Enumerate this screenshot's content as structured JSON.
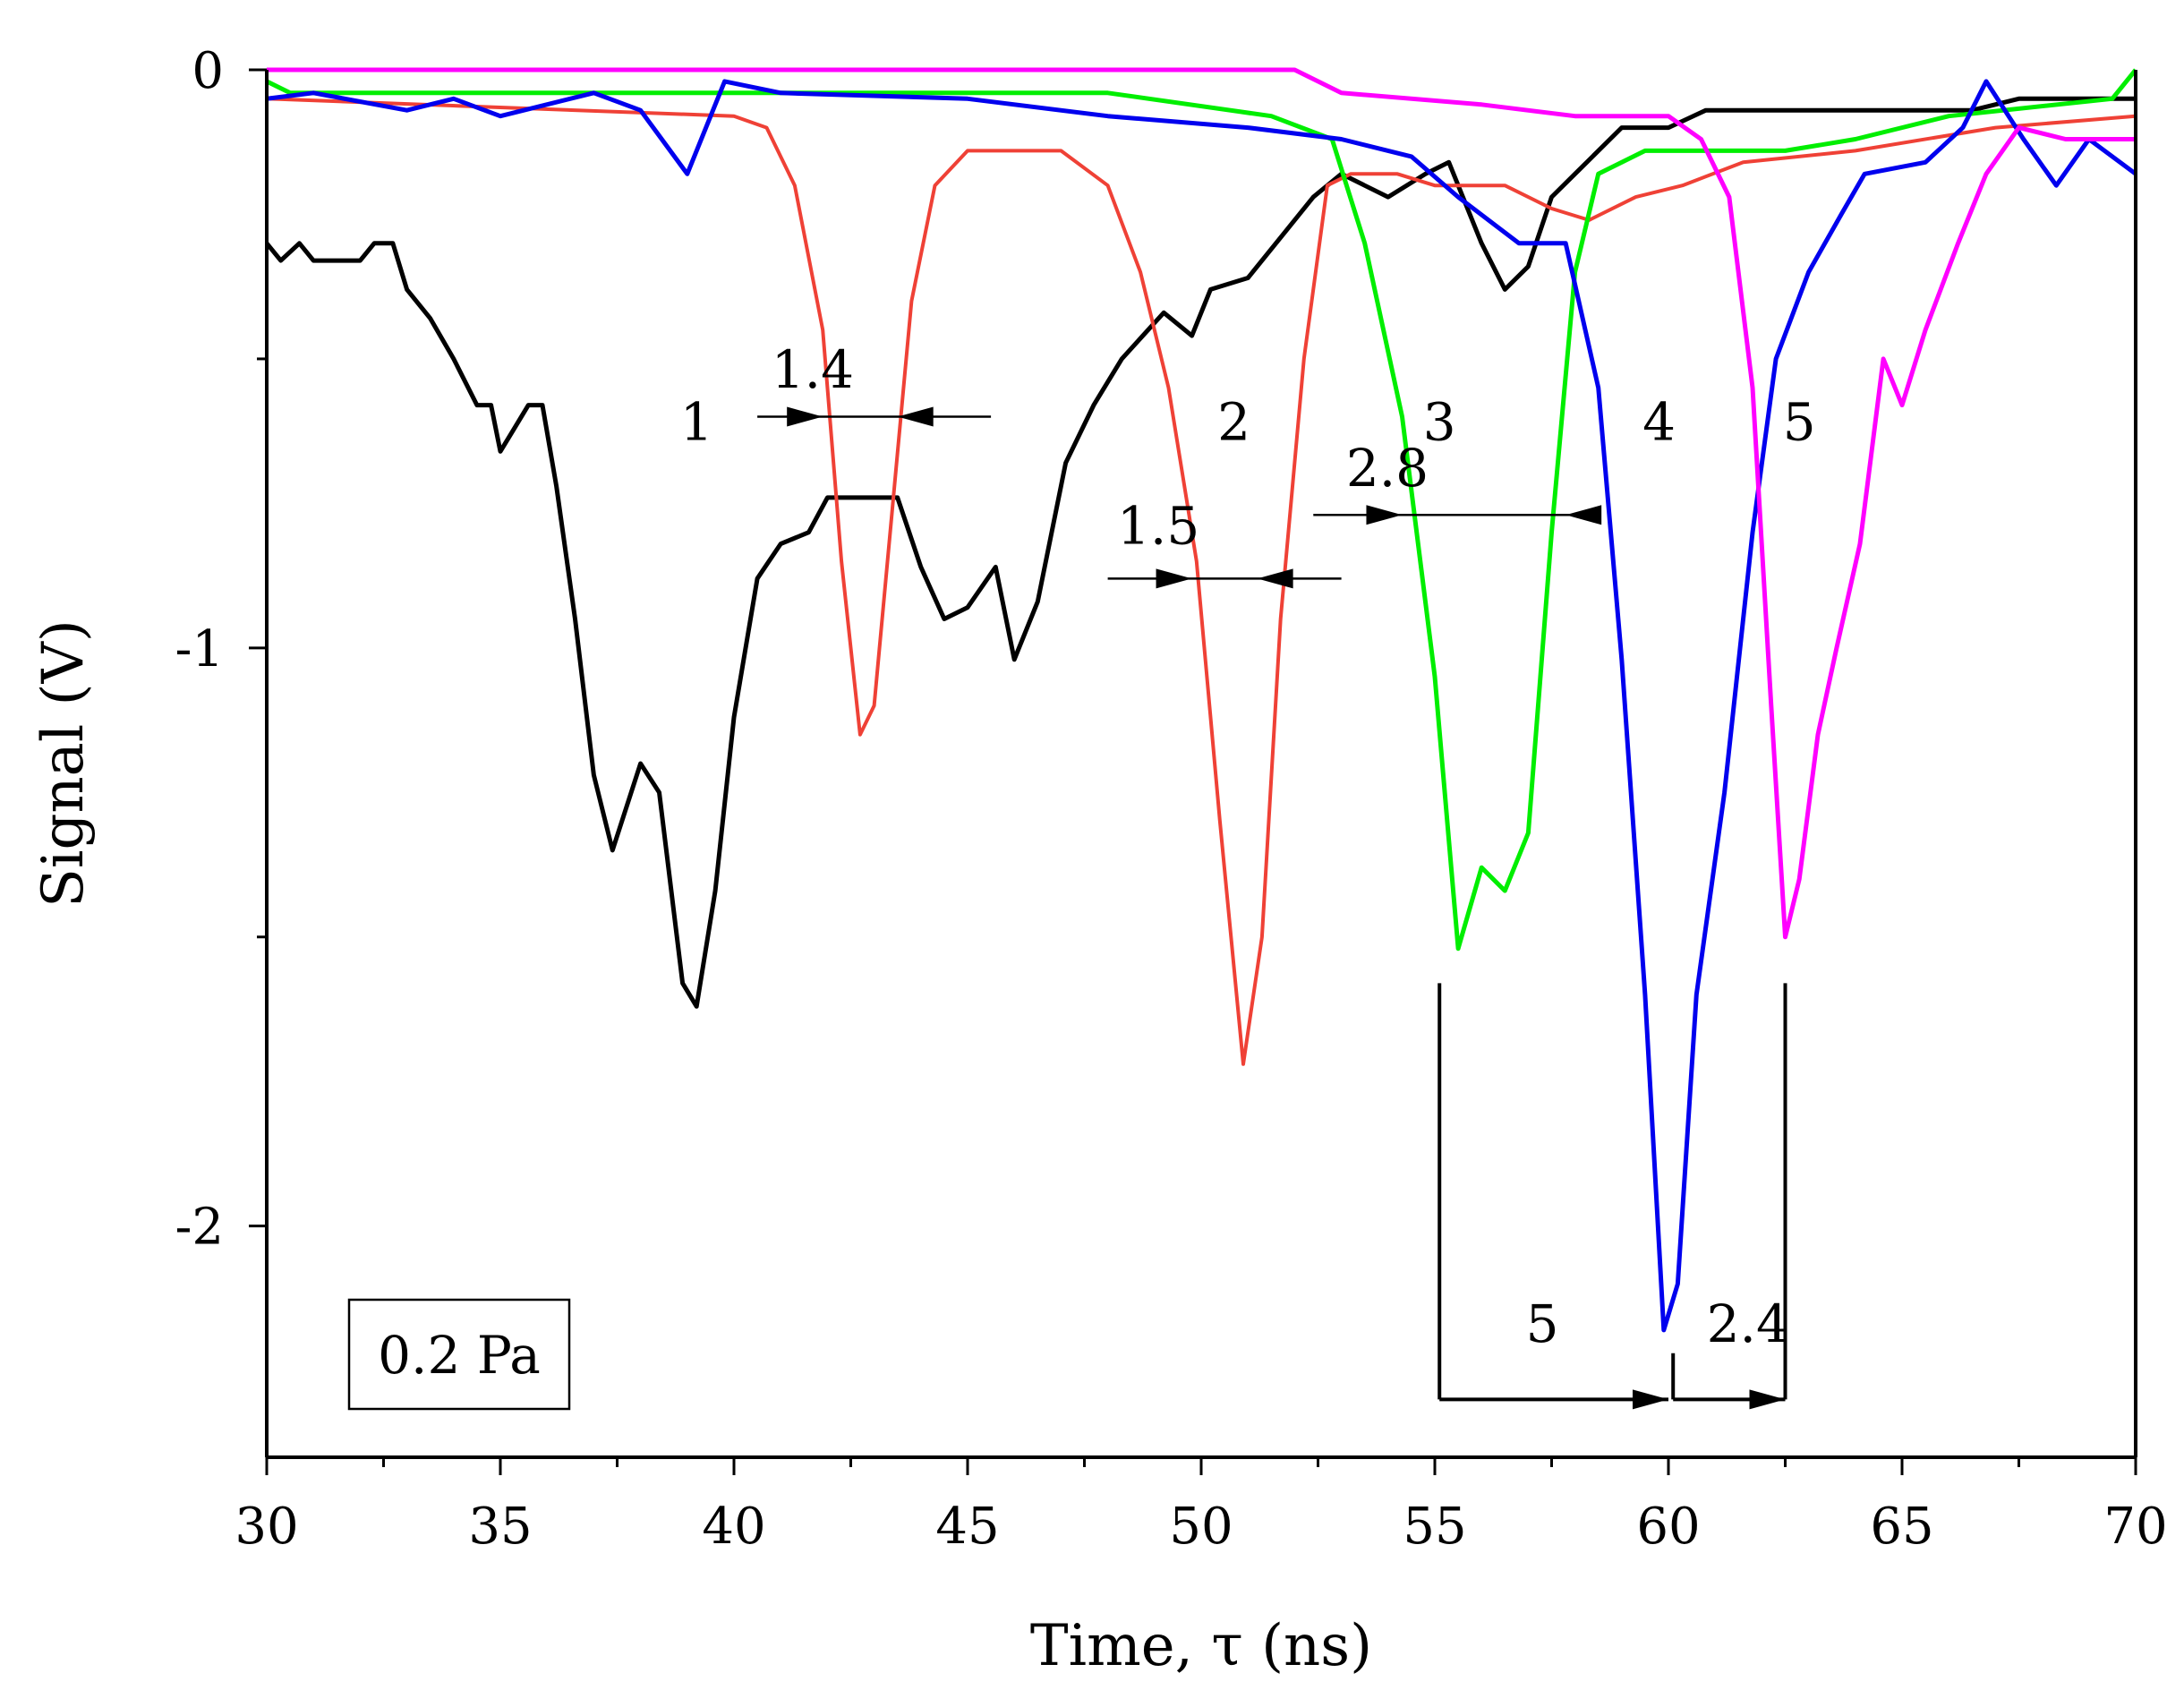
{
  "chart_data": {
    "type": "line",
    "xlabel": "Time, τ (ns)",
    "ylabel": "Signal (V)",
    "xlim": [
      30,
      70
    ],
    "ylim": [
      -2.4,
      0
    ],
    "xticks": [
      30,
      35,
      40,
      45,
      50,
      55,
      60,
      65,
      70
    ],
    "xtick_labels": [
      "30",
      "35",
      "40",
      "45",
      "50",
      "55",
      "60",
      "65",
      "70"
    ],
    "yticks": [
      0,
      -1,
      -2
    ],
    "ytick_labels": [
      "0",
      "-1",
      "-2"
    ],
    "grid": false,
    "legend_box": "0.2 Pa",
    "series": [
      {
        "name": "1",
        "color": "#000000",
        "points": [
          [
            30,
            -0.3
          ],
          [
            30.3,
            -0.33
          ],
          [
            30.7,
            -0.3
          ],
          [
            31,
            -0.33
          ],
          [
            32,
            -0.33
          ],
          [
            32.3,
            -0.3
          ],
          [
            32.7,
            -0.3
          ],
          [
            33,
            -0.38
          ],
          [
            33.5,
            -0.43
          ],
          [
            34,
            -0.5
          ],
          [
            34.5,
            -0.58
          ],
          [
            34.8,
            -0.58
          ],
          [
            35,
            -0.66
          ],
          [
            35.3,
            -0.62
          ],
          [
            35.6,
            -0.58
          ],
          [
            35.9,
            -0.58
          ],
          [
            36.2,
            -0.72
          ],
          [
            36.6,
            -0.95
          ],
          [
            37,
            -1.22
          ],
          [
            37.4,
            -1.35
          ],
          [
            38,
            -1.2
          ],
          [
            38.4,
            -1.25
          ],
          [
            38.9,
            -1.58
          ],
          [
            39.2,
            -1.62
          ],
          [
            39.6,
            -1.42
          ],
          [
            40,
            -1.12
          ],
          [
            40.5,
            -0.88
          ],
          [
            41,
            -0.82
          ],
          [
            41.6,
            -0.8
          ],
          [
            42,
            -0.74
          ],
          [
            43.5,
            -0.74
          ],
          [
            44,
            -0.86
          ],
          [
            44.5,
            -0.95
          ],
          [
            45,
            -0.93
          ],
          [
            45.6,
            -0.86
          ],
          [
            46,
            -1.02
          ],
          [
            46.5,
            -0.92
          ],
          [
            47.1,
            -0.68
          ],
          [
            47.7,
            -0.58
          ],
          [
            48.3,
            -0.5
          ],
          [
            49.2,
            -0.42
          ],
          [
            49.8,
            -0.46
          ],
          [
            50.2,
            -0.38
          ],
          [
            51,
            -0.36
          ],
          [
            51.8,
            -0.28
          ],
          [
            52.4,
            -0.22
          ],
          [
            53,
            -0.18
          ],
          [
            54,
            -0.22
          ],
          [
            54.8,
            -0.18
          ],
          [
            55.3,
            -0.16
          ],
          [
            56,
            -0.3
          ],
          [
            56.5,
            -0.38
          ],
          [
            57,
            -0.34
          ],
          [
            57.5,
            -0.22
          ],
          [
            58,
            -0.18
          ],
          [
            59,
            -0.1
          ],
          [
            60,
            -0.1
          ],
          [
            60.8,
            -0.07
          ],
          [
            66.5,
            -0.07
          ],
          [
            67.5,
            -0.05
          ],
          [
            70,
            -0.05
          ]
        ]
      },
      {
        "name": "2",
        "color": "#ef4136",
        "points": [
          [
            30,
            -0.05
          ],
          [
            40,
            -0.08
          ],
          [
            40.7,
            -0.1
          ],
          [
            41.3,
            -0.2
          ],
          [
            41.9,
            -0.45
          ],
          [
            42.3,
            -0.85
          ],
          [
            42.7,
            -1.15
          ],
          [
            43,
            -1.1
          ],
          [
            43.4,
            -0.75
          ],
          [
            43.8,
            -0.4
          ],
          [
            44.3,
            -0.2
          ],
          [
            45,
            -0.14
          ],
          [
            47,
            -0.14
          ],
          [
            48,
            -0.2
          ],
          [
            48.7,
            -0.35
          ],
          [
            49.3,
            -0.55
          ],
          [
            49.9,
            -0.85
          ],
          [
            50.4,
            -1.3
          ],
          [
            50.9,
            -1.72
          ],
          [
            51.3,
            -1.5
          ],
          [
            51.7,
            -0.95
          ],
          [
            52.2,
            -0.5
          ],
          [
            52.7,
            -0.2
          ],
          [
            53.2,
            -0.18
          ],
          [
            54.2,
            -0.18
          ],
          [
            55,
            -0.2
          ],
          [
            56.5,
            -0.2
          ],
          [
            57.5,
            -0.24
          ],
          [
            58.3,
            -0.26
          ],
          [
            59.3,
            -0.22
          ],
          [
            60.3,
            -0.2
          ],
          [
            61.6,
            -0.16
          ],
          [
            64,
            -0.14
          ],
          [
            67,
            -0.1
          ],
          [
            70,
            -0.08
          ]
        ]
      },
      {
        "name": "3",
        "color": "#00ee00",
        "points": [
          [
            30,
            -0.02
          ],
          [
            30.5,
            -0.04
          ],
          [
            35,
            -0.04
          ],
          [
            48,
            -0.04
          ],
          [
            51.5,
            -0.08
          ],
          [
            52.8,
            -0.12
          ],
          [
            53.5,
            -0.3
          ],
          [
            54.3,
            -0.6
          ],
          [
            55,
            -1.05
          ],
          [
            55.5,
            -1.52
          ],
          [
            56,
            -1.38
          ],
          [
            56.5,
            -1.42
          ],
          [
            57,
            -1.32
          ],
          [
            57.5,
            -0.8
          ],
          [
            58,
            -0.35
          ],
          [
            58.5,
            -0.18
          ],
          [
            59.5,
            -0.14
          ],
          [
            61,
            -0.14
          ],
          [
            62.5,
            -0.14
          ],
          [
            64,
            -0.12
          ],
          [
            66,
            -0.08
          ],
          [
            69.5,
            -0.05
          ],
          [
            70,
            0
          ]
        ]
      },
      {
        "name": "4",
        "color": "#0000ee",
        "points": [
          [
            30,
            -0.05
          ],
          [
            31,
            -0.04
          ],
          [
            33,
            -0.07
          ],
          [
            34,
            -0.05
          ],
          [
            35,
            -0.08
          ],
          [
            37,
            -0.04
          ],
          [
            38,
            -0.07
          ],
          [
            39,
            -0.18
          ],
          [
            39.8,
            -0.02
          ],
          [
            41,
            -0.04
          ],
          [
            45,
            -0.05
          ],
          [
            48,
            -0.08
          ],
          [
            51,
            -0.1
          ],
          [
            53,
            -0.12
          ],
          [
            54.5,
            -0.15
          ],
          [
            55.5,
            -0.22
          ],
          [
            56.8,
            -0.3
          ],
          [
            57.8,
            -0.3
          ],
          [
            58.5,
            -0.55
          ],
          [
            59,
            -1.02
          ],
          [
            59.5,
            -1.6
          ],
          [
            59.9,
            -2.18
          ],
          [
            60.2,
            -2.1
          ],
          [
            60.6,
            -1.6
          ],
          [
            61.2,
            -1.25
          ],
          [
            61.8,
            -0.8
          ],
          [
            62.3,
            -0.5
          ],
          [
            63,
            -0.35
          ],
          [
            63.7,
            -0.25
          ],
          [
            64.2,
            -0.18
          ],
          [
            65.5,
            -0.16
          ],
          [
            66.3,
            -0.1
          ],
          [
            66.8,
            -0.02
          ],
          [
            67.6,
            -0.12
          ],
          [
            68.3,
            -0.2
          ],
          [
            69,
            -0.12
          ],
          [
            70,
            -0.18
          ]
        ]
      },
      {
        "name": "5",
        "color": "#ff00ff",
        "points": [
          [
            30,
            0
          ],
          [
            52,
            0
          ],
          [
            53,
            -0.04
          ],
          [
            56,
            -0.06
          ],
          [
            58,
            -0.08
          ],
          [
            60,
            -0.08
          ],
          [
            60.7,
            -0.12
          ],
          [
            61.3,
            -0.22
          ],
          [
            61.8,
            -0.55
          ],
          [
            62.2,
            -1.1
          ],
          [
            62.5,
            -1.5
          ],
          [
            62.8,
            -1.4
          ],
          [
            63.2,
            -1.15
          ],
          [
            63.6,
            -1.0
          ],
          [
            64.1,
            -0.82
          ],
          [
            64.6,
            -0.5
          ],
          [
            65,
            -0.58
          ],
          [
            65.5,
            -0.45
          ],
          [
            66.2,
            -0.3
          ],
          [
            66.8,
            -0.18
          ],
          [
            67.5,
            -0.1
          ],
          [
            68.5,
            -0.12
          ],
          [
            70,
            -0.12
          ]
        ]
      }
    ],
    "peak_labels": [
      {
        "text": "1",
        "x": 39.2,
        "y": -0.64
      },
      {
        "text": "2",
        "x": 50.7,
        "y": -0.64
      },
      {
        "text": "3",
        "x": 55.1,
        "y": -0.64
      },
      {
        "text": "4",
        "x": 59.8,
        "y": -0.64
      },
      {
        "text": "5",
        "x": 62.8,
        "y": -0.64
      }
    ],
    "width_annotations": [
      {
        "text": "1.4",
        "x_left": 41.9,
        "x_right": 43.5,
        "y": -0.6,
        "line_from": 40.5,
        "line_to": 45.5,
        "label_x": 40.8,
        "label_y": -0.55
      },
      {
        "text": "1.5",
        "x_left": 49.8,
        "x_right": 51.2,
        "y": -0.88,
        "line_from": 48,
        "line_to": 53,
        "label_x": 48.2,
        "label_y": -0.82
      },
      {
        "text": "2.8",
        "x_left": 54.3,
        "x_right": 57.8,
        "y": -0.77,
        "line_from": 52.4,
        "line_to": 58.3,
        "label_x": 53.1,
        "label_y": -0.72
      }
    ],
    "interval_annotations": [
      {
        "text": "5",
        "from": 55.1,
        "to": 60.0,
        "y": -2.3,
        "label_x": 57.3,
        "label_y": -2.2
      },
      {
        "text": "2.4",
        "from": 60.1,
        "to": 62.5,
        "y": -2.3,
        "label_x": 61.7,
        "label_y": -2.2
      }
    ],
    "interval_markers": [
      {
        "x": 55.1,
        "y_top": -1.58,
        "y_bottom": -2.3
      },
      {
        "x": 60.1,
        "y_top": -2.22,
        "y_bottom": -2.3
      },
      {
        "x": 62.5,
        "y_top": -1.58,
        "y_bottom": -2.3
      }
    ]
  }
}
